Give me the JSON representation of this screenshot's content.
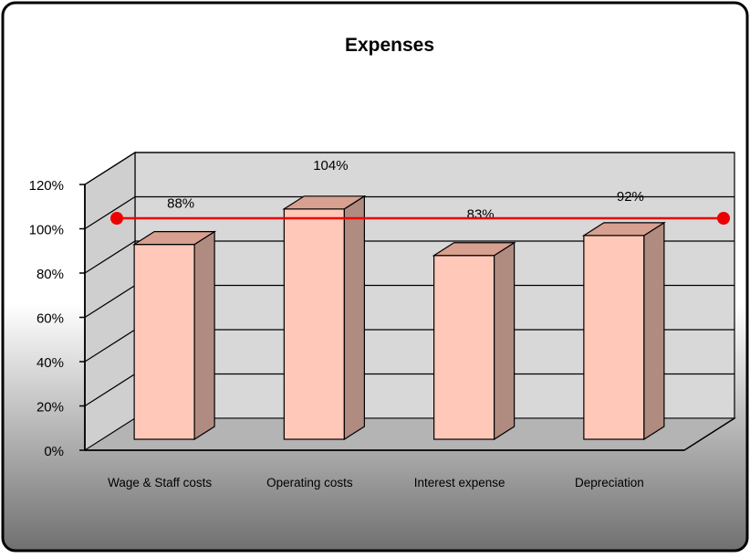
{
  "chart_data": {
    "type": "bar",
    "title": "Expenses",
    "categories": [
      "Wage & Staff costs",
      "Operating  costs",
      "Interest expense",
      "Depreciation"
    ],
    "series": [
      {
        "values": [
          88,
          104,
          83,
          92
        ],
        "data_labels": [
          "88%",
          "104%",
          "83%",
          "92%"
        ]
      }
    ],
    "reference_line": {
      "value": 100
    },
    "y_ticks": [
      "0%",
      "20%",
      "40%",
      "60%",
      "80%",
      "100%",
      "120%"
    ],
    "ylim": [
      0,
      120
    ],
    "grid": true,
    "legend": "none",
    "style": "3d-bar",
    "colors": {
      "bar_front": "#ffc8b8",
      "bar_side": "#b08b80",
      "bar_top": "#d8a090",
      "reference_line": "#ee0000",
      "frame_border": "#000000",
      "background_top": "#ffffff",
      "background_bottom": "#777777"
    }
  }
}
